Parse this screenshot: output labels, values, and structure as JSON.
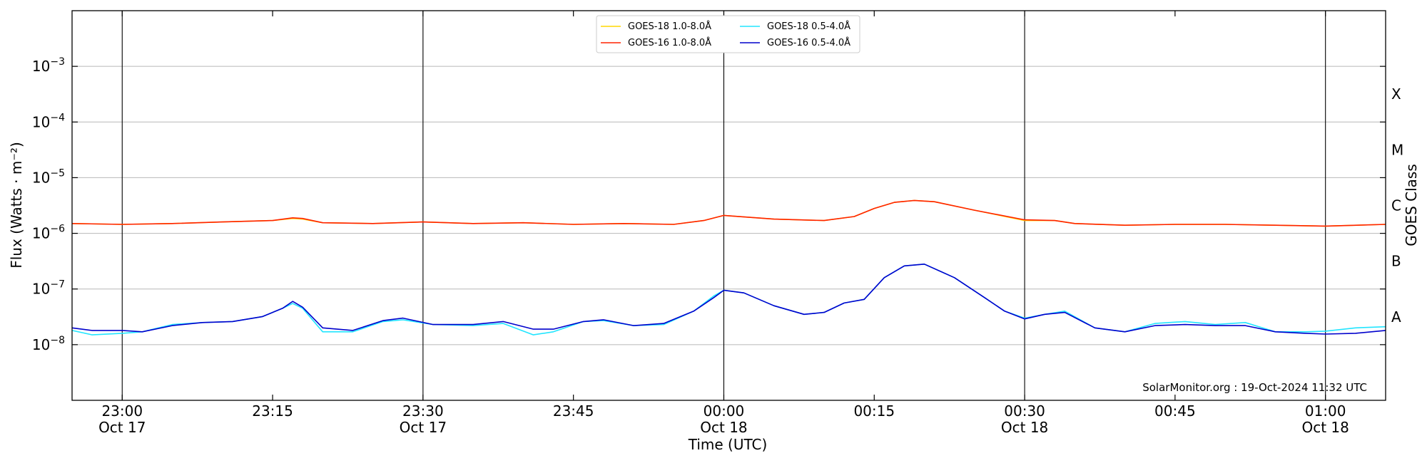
{
  "chart_data": {
    "type": "line",
    "xlabel": "Time (UTC)",
    "ylabel": "Flux (Watts · m⁻²)",
    "right_label": "GOES Class",
    "credit": "SolarMonitor.org : 19-Oct-2024 11:32 UTC",
    "y_scale": "log",
    "ylim": [
      1e-09,
      0.01
    ],
    "xlim": [
      "22:55",
      "01:06"
    ],
    "grid": "horizontal",
    "legend_placement": "top-center",
    "y_ticks": [
      {
        "value": 1e-08,
        "base": "10",
        "exp": "−8"
      },
      {
        "value": 1e-07,
        "base": "10",
        "exp": "−7"
      },
      {
        "value": 1e-06,
        "base": "10",
        "exp": "−6"
      },
      {
        "value": 1e-05,
        "base": "10",
        "exp": "−5"
      },
      {
        "value": 0.0001,
        "base": "10",
        "exp": "−4"
      },
      {
        "value": 0.001,
        "base": "10",
        "exp": "−3"
      }
    ],
    "x_ticks": [
      {
        "time": "23:00",
        "label": "23:00",
        "date": "Oct 17"
      },
      {
        "time": "23:15",
        "label": "23:15",
        "date": ""
      },
      {
        "time": "23:30",
        "label": "23:30",
        "date": "Oct 17"
      },
      {
        "time": "23:45",
        "label": "23:45",
        "date": ""
      },
      {
        "time": "00:00",
        "label": "00:00",
        "date": "Oct 18"
      },
      {
        "time": "00:15",
        "label": "00:15",
        "date": ""
      },
      {
        "time": "00:30",
        "label": "00:30",
        "date": "Oct 18"
      },
      {
        "time": "00:45",
        "label": "00:45",
        "date": ""
      },
      {
        "time": "01:00",
        "label": "01:00",
        "date": "Oct 18"
      }
    ],
    "vertical_lines": [
      "23:00",
      "23:30",
      "00:00",
      "00:30",
      "01:00"
    ],
    "goes_classes": [
      {
        "label": "A",
        "value": 1e-08
      },
      {
        "label": "B",
        "value": 1e-07
      },
      {
        "label": "C",
        "value": 1e-06
      },
      {
        "label": "M",
        "value": 1e-05
      },
      {
        "label": "X",
        "value": 0.0001
      }
    ],
    "series": [
      {
        "name": "GOES-18 1.0-8.0Å",
        "color": "#FFD700",
        "x": [
          "22:55",
          "23:00",
          "23:05",
          "23:10",
          "23:15",
          "23:17",
          "23:18",
          "23:20",
          "23:25",
          "23:30",
          "23:35",
          "23:40",
          "23:45",
          "23:50",
          "23:55",
          "23:58",
          "00:00",
          "00:05",
          "00:10",
          "00:13",
          "00:15",
          "00:17",
          "00:19",
          "00:21",
          "00:25",
          "00:30",
          "00:33",
          "00:35",
          "00:40",
          "00:45",
          "00:50",
          "00:55",
          "01:00",
          "01:06"
        ],
        "values": [
          1.5e-06,
          1.45e-06,
          1.5e-06,
          1.6e-06,
          1.7e-06,
          1.85e-06,
          1.8e-06,
          1.55e-06,
          1.5e-06,
          1.6e-06,
          1.5e-06,
          1.55e-06,
          1.45e-06,
          1.5e-06,
          1.45e-06,
          1.7e-06,
          2.1e-06,
          1.8e-06,
          1.7e-06,
          2e-06,
          2.8e-06,
          3.6e-06,
          3.9e-06,
          3.7e-06,
          2.6e-06,
          1.7e-06,
          1.7e-06,
          1.5e-06,
          1.4e-06,
          1.45e-06,
          1.45e-06,
          1.4e-06,
          1.35e-06,
          1.45e-06
        ]
      },
      {
        "name": "GOES-16 1.0-8.0Å",
        "color": "#FF2200",
        "x": [
          "22:55",
          "23:00",
          "23:05",
          "23:10",
          "23:15",
          "23:17",
          "23:18",
          "23:20",
          "23:25",
          "23:30",
          "23:35",
          "23:40",
          "23:45",
          "23:50",
          "23:55",
          "23:58",
          "00:00",
          "00:05",
          "00:10",
          "00:13",
          "00:15",
          "00:17",
          "00:19",
          "00:21",
          "00:25",
          "00:30",
          "00:33",
          "00:35",
          "00:40",
          "00:45",
          "00:50",
          "00:55",
          "01:00",
          "01:06"
        ],
        "values": [
          1.5e-06,
          1.45e-06,
          1.5e-06,
          1.6e-06,
          1.7e-06,
          1.9e-06,
          1.85e-06,
          1.55e-06,
          1.5e-06,
          1.6e-06,
          1.5e-06,
          1.55e-06,
          1.45e-06,
          1.5e-06,
          1.45e-06,
          1.7e-06,
          2.1e-06,
          1.8e-06,
          1.7e-06,
          2e-06,
          2.8e-06,
          3.6e-06,
          3.9e-06,
          3.7e-06,
          2.6e-06,
          1.75e-06,
          1.7e-06,
          1.5e-06,
          1.4e-06,
          1.45e-06,
          1.45e-06,
          1.4e-06,
          1.35e-06,
          1.45e-06
        ]
      },
      {
        "name": "GOES-18 0.5-4.0Å",
        "color": "#22E5FF",
        "x": [
          "22:55",
          "22:57",
          "23:00",
          "23:02",
          "23:05",
          "23:08",
          "23:11",
          "23:14",
          "23:16",
          "23:17",
          "23:18",
          "23:20",
          "23:23",
          "23:26",
          "23:28",
          "23:31",
          "23:35",
          "23:38",
          "23:41",
          "23:43",
          "23:46",
          "23:48",
          "23:51",
          "23:54",
          "23:57",
          "23:59",
          "00:00",
          "00:02",
          "00:05",
          "00:08",
          "00:10",
          "00:12",
          "00:14",
          "00:16",
          "00:18",
          "00:20",
          "00:23",
          "00:26",
          "00:28",
          "00:30",
          "00:32",
          "00:34",
          "00:37",
          "00:40",
          "00:43",
          "00:46",
          "00:49",
          "00:52",
          "00:55",
          "00:58",
          "01:00",
          "01:03",
          "01:06"
        ],
        "values": [
          1.8e-08,
          1.5e-08,
          1.6e-08,
          1.7e-08,
          2.3e-08,
          2.5e-08,
          2.6e-08,
          3.2e-08,
          4.5e-08,
          5.5e-08,
          4.5e-08,
          1.7e-08,
          1.7e-08,
          2.6e-08,
          2.8e-08,
          2.3e-08,
          2.2e-08,
          2.4e-08,
          1.5e-08,
          1.7e-08,
          2.6e-08,
          2.7e-08,
          2.2e-08,
          2.3e-08,
          4e-08,
          7.5e-08,
          9.5e-08,
          8.5e-08,
          5e-08,
          3.5e-08,
          3.8e-08,
          5.6e-08,
          6.5e-08,
          1.6e-07,
          2.6e-07,
          2.8e-07,
          1.6e-07,
          7e-08,
          4e-08,
          3e-08,
          3.5e-08,
          4e-08,
          2e-08,
          1.7e-08,
          2.4e-08,
          2.6e-08,
          2.3e-08,
          2.5e-08,
          1.7e-08,
          1.7e-08,
          1.75e-08,
          2e-08,
          2.1e-08
        ]
      },
      {
        "name": "GOES-16 0.5-4.0Å",
        "color": "#0000CC",
        "x": [
          "22:55",
          "22:57",
          "23:00",
          "23:02",
          "23:05",
          "23:08",
          "23:11",
          "23:14",
          "23:16",
          "23:17",
          "23:18",
          "23:20",
          "23:23",
          "23:26",
          "23:28",
          "23:31",
          "23:35",
          "23:38",
          "23:41",
          "23:43",
          "23:46",
          "23:48",
          "23:51",
          "23:54",
          "23:57",
          "23:59",
          "00:00",
          "00:02",
          "00:05",
          "00:08",
          "00:10",
          "00:12",
          "00:14",
          "00:16",
          "00:18",
          "00:20",
          "00:23",
          "00:26",
          "00:28",
          "00:30",
          "00:32",
          "00:34",
          "00:37",
          "00:40",
          "00:43",
          "00:46",
          "00:49",
          "00:52",
          "00:55",
          "00:58",
          "01:00",
          "01:03",
          "01:06"
        ],
        "values": [
          2e-08,
          1.8e-08,
          1.8e-08,
          1.7e-08,
          2.2e-08,
          2.5e-08,
          2.6e-08,
          3.2e-08,
          4.5e-08,
          6e-08,
          4.7e-08,
          2e-08,
          1.8e-08,
          2.7e-08,
          3e-08,
          2.3e-08,
          2.3e-08,
          2.6e-08,
          1.9e-08,
          1.9e-08,
          2.6e-08,
          2.8e-08,
          2.2e-08,
          2.4e-08,
          4e-08,
          7e-08,
          9.5e-08,
          8.5e-08,
          5e-08,
          3.5e-08,
          3.8e-08,
          5.6e-08,
          6.5e-08,
          1.6e-07,
          2.6e-07,
          2.8e-07,
          1.6e-07,
          7e-08,
          4e-08,
          2.9e-08,
          3.5e-08,
          3.8e-08,
          2e-08,
          1.7e-08,
          2.2e-08,
          2.3e-08,
          2.2e-08,
          2.2e-08,
          1.7e-08,
          1.6e-08,
          1.55e-08,
          1.6e-08,
          1.8e-08
        ]
      }
    ]
  }
}
